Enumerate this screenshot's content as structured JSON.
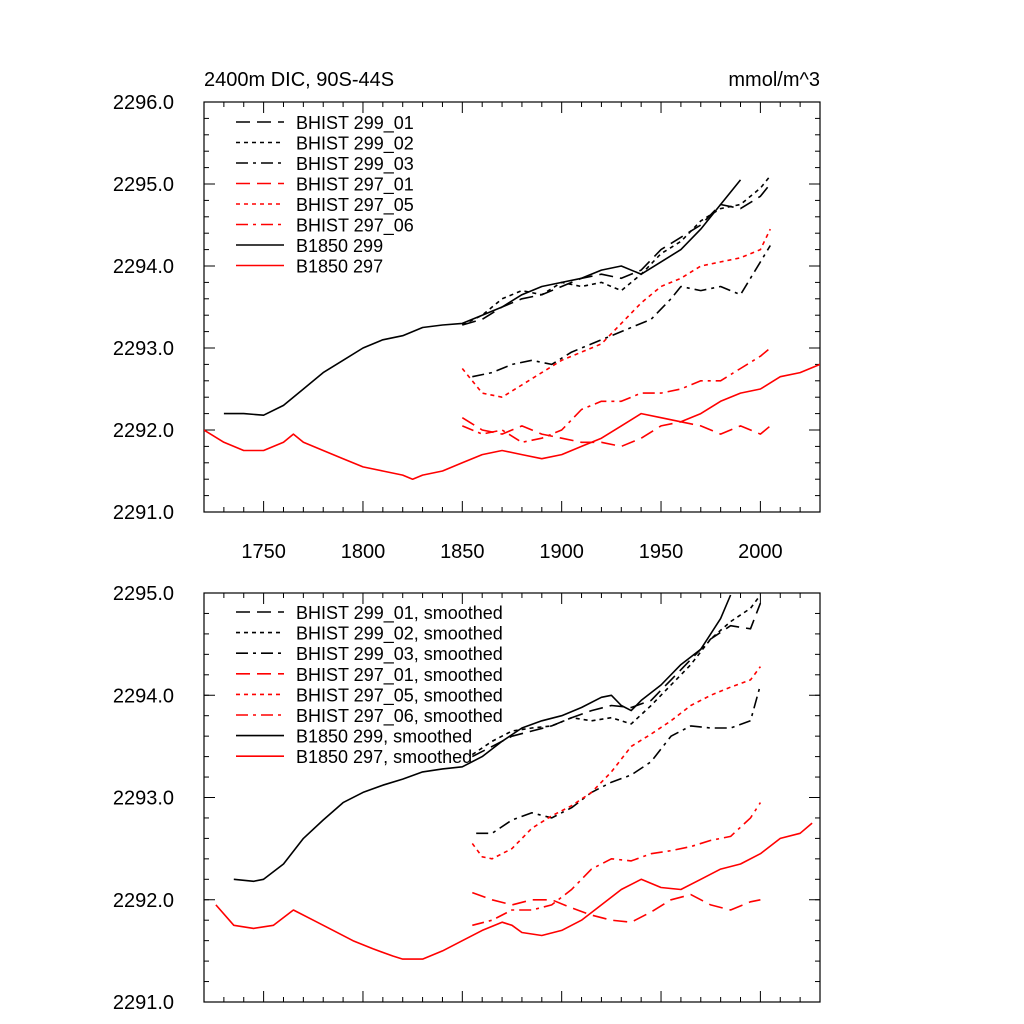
{
  "chart_data": [
    {
      "type": "line",
      "title": "2400m DIC, 90S-44S",
      "units": "mmol/m^3",
      "xlim": [
        1720,
        2030
      ],
      "ylim": [
        2291.0,
        2296.0
      ],
      "x_ticks": [
        1750,
        1800,
        1850,
        1900,
        1950,
        2000
      ],
      "x_tick_labels": [
        "1750",
        "1800",
        "1850",
        "1900",
        "1950",
        "2000"
      ],
      "y_ticks": [
        2291.0,
        2292.0,
        2293.0,
        2294.0,
        2295.0,
        2296.0
      ],
      "y_tick_labels": [
        "2291.0",
        "2292.0",
        "2293.0",
        "2294.0",
        "2295.0",
        "2296.0"
      ],
      "legend_position": "top-left",
      "series": [
        {
          "name": "BHIST 299_01",
          "color": "#000000",
          "dash": "dash",
          "x": [
            1850,
            1860,
            1870,
            1880,
            1890,
            1900,
            1910,
            1920,
            1930,
            1940,
            1950,
            1960,
            1970,
            1980,
            1990,
            2000,
            2005
          ],
          "y": [
            2293.28,
            2293.35,
            2293.5,
            2293.6,
            2293.65,
            2293.75,
            2293.85,
            2293.9,
            2293.85,
            2293.95,
            2294.2,
            2294.35,
            2294.5,
            2294.75,
            2294.7,
            2294.85,
            2295.0
          ]
        },
        {
          "name": "BHIST 299_02",
          "color": "#000000",
          "dash": "dot",
          "x": [
            1850,
            1860,
            1870,
            1880,
            1890,
            1900,
            1910,
            1920,
            1930,
            1940,
            1950,
            1960,
            1970,
            1980,
            1990,
            2000,
            2005
          ],
          "y": [
            2293.28,
            2293.4,
            2293.6,
            2293.7,
            2293.65,
            2293.8,
            2293.75,
            2293.8,
            2293.7,
            2293.9,
            2294.15,
            2294.3,
            2294.55,
            2294.7,
            2294.75,
            2294.95,
            2295.1
          ]
        },
        {
          "name": "BHIST 299_03",
          "color": "#000000",
          "dash": "dashdot",
          "x": [
            1855,
            1865,
            1875,
            1885,
            1895,
            1905,
            1915,
            1925,
            1935,
            1945,
            1955,
            1960,
            1970,
            1980,
            1990,
            2000,
            2005
          ],
          "y": [
            2292.65,
            2292.7,
            2292.8,
            2292.85,
            2292.8,
            2292.95,
            2293.05,
            2293.15,
            2293.25,
            2293.35,
            2293.6,
            2293.75,
            2293.7,
            2293.75,
            2293.65,
            2294.05,
            2294.25
          ]
        },
        {
          "name": "BHIST 297_01",
          "color": "#ff0000",
          "dash": "dash",
          "x": [
            1850,
            1860,
            1870,
            1880,
            1890,
            1900,
            1910,
            1920,
            1930,
            1940,
            1950,
            1960,
            1970,
            1980,
            1990,
            2000,
            2005
          ],
          "y": [
            2292.15,
            2292.0,
            2291.95,
            2292.05,
            2291.95,
            2291.9,
            2291.85,
            2291.85,
            2291.8,
            2291.9,
            2292.05,
            2292.1,
            2292.05,
            2291.95,
            2292.05,
            2291.95,
            2292.05
          ]
        },
        {
          "name": "BHIST 297_05",
          "color": "#ff0000",
          "dash": "dot",
          "x": [
            1850,
            1860,
            1870,
            1880,
            1890,
            1900,
            1910,
            1920,
            1930,
            1940,
            1950,
            1960,
            1970,
            1980,
            1990,
            2000,
            2005
          ],
          "y": [
            2292.75,
            2292.45,
            2292.4,
            2292.55,
            2292.7,
            2292.85,
            2292.95,
            2293.05,
            2293.3,
            2293.55,
            2293.75,
            2293.85,
            2294.0,
            2294.05,
            2294.1,
            2294.2,
            2294.45
          ]
        },
        {
          "name": "BHIST 297_06",
          "color": "#ff0000",
          "dash": "dashdot",
          "x": [
            1850,
            1860,
            1870,
            1880,
            1890,
            1900,
            1910,
            1920,
            1930,
            1940,
            1950,
            1960,
            1970,
            1980,
            1990,
            2000,
            2005
          ],
          "y": [
            2292.05,
            2291.95,
            2292.0,
            2291.85,
            2291.9,
            2292.0,
            2292.25,
            2292.35,
            2292.35,
            2292.45,
            2292.45,
            2292.5,
            2292.6,
            2292.6,
            2292.75,
            2292.9,
            2293.0
          ]
        },
        {
          "name": "B1850 299",
          "color": "#000000",
          "dash": "solid",
          "x": [
            1730,
            1740,
            1750,
            1760,
            1770,
            1780,
            1790,
            1800,
            1810,
            1820,
            1830,
            1840,
            1850,
            1860,
            1870,
            1880,
            1890,
            1900,
            1910,
            1920,
            1930,
            1940,
            1950,
            1960,
            1970,
            1980,
            1990
          ],
          "y": [
            2292.2,
            2292.2,
            2292.18,
            2292.3,
            2292.5,
            2292.7,
            2292.85,
            2293.0,
            2293.1,
            2293.15,
            2293.25,
            2293.28,
            2293.3,
            2293.4,
            2293.5,
            2293.65,
            2293.75,
            2293.8,
            2293.85,
            2293.95,
            2294.0,
            2293.9,
            2294.05,
            2294.2,
            2294.45,
            2294.75,
            2295.05
          ]
        },
        {
          "name": "B1850 297",
          "color": "#ff0000",
          "dash": "solid",
          "x": [
            1720,
            1730,
            1740,
            1750,
            1760,
            1765,
            1770,
            1780,
            1790,
            1800,
            1810,
            1820,
            1825,
            1830,
            1840,
            1850,
            1860,
            1870,
            1880,
            1890,
            1900,
            1910,
            1920,
            1930,
            1940,
            1950,
            1960,
            1970,
            1980,
            1990,
            2000,
            2010,
            2020,
            2030
          ],
          "y": [
            2292.0,
            2291.85,
            2291.75,
            2291.75,
            2291.85,
            2291.95,
            2291.85,
            2291.75,
            2291.65,
            2291.55,
            2291.5,
            2291.45,
            2291.4,
            2291.45,
            2291.5,
            2291.6,
            2291.7,
            2291.75,
            2291.7,
            2291.65,
            2291.7,
            2291.8,
            2291.9,
            2292.05,
            2292.2,
            2292.15,
            2292.1,
            2292.2,
            2292.35,
            2292.45,
            2292.5,
            2292.65,
            2292.7,
            2292.8
          ]
        }
      ]
    },
    {
      "type": "line",
      "xlim": [
        1720,
        2030
      ],
      "ylim": [
        2291.0,
        2295.0
      ],
      "x_ticks": [
        1750,
        1800,
        1850,
        1900,
        1950,
        2000
      ],
      "x_tick_labels": [],
      "y_ticks": [
        2291.0,
        2292.0,
        2293.0,
        2294.0,
        2295.0
      ],
      "y_tick_labels": [
        "2291.0",
        "2292.0",
        "2293.0",
        "2294.0",
        "2295.0"
      ],
      "legend_position": "top-left",
      "series": [
        {
          "name": "BHIST 299_01, smoothed",
          "color": "#000000",
          "dash": "dash",
          "x": [
            1855,
            1865,
            1875,
            1885,
            1895,
            1905,
            1915,
            1925,
            1935,
            1945,
            1955,
            1965,
            1975,
            1985,
            1995,
            2000
          ],
          "y": [
            2293.4,
            2293.5,
            2293.6,
            2293.65,
            2293.7,
            2293.78,
            2293.85,
            2293.9,
            2293.88,
            2293.95,
            2294.15,
            2294.35,
            2294.55,
            2294.68,
            2294.65,
            2294.9
          ]
        },
        {
          "name": "BHIST 299_02, smoothed",
          "color": "#000000",
          "dash": "dot",
          "x": [
            1855,
            1865,
            1875,
            1885,
            1895,
            1905,
            1915,
            1925,
            1935,
            1945,
            1955,
            1965,
            1975,
            1985,
            1995,
            2000
          ],
          "y": [
            2293.42,
            2293.55,
            2293.65,
            2293.68,
            2293.7,
            2293.78,
            2293.75,
            2293.78,
            2293.72,
            2293.9,
            2294.1,
            2294.3,
            2294.55,
            2294.72,
            2294.85,
            2294.98
          ]
        },
        {
          "name": "BHIST 299_03, smoothed",
          "color": "#000000",
          "dash": "dashdot",
          "x": [
            1857,
            1865,
            1875,
            1885,
            1895,
            1905,
            1915,
            1925,
            1935,
            1945,
            1955,
            1965,
            1975,
            1985,
            1995,
            2000
          ],
          "y": [
            2292.65,
            2292.65,
            2292.78,
            2292.85,
            2292.8,
            2292.9,
            2293.05,
            2293.15,
            2293.22,
            2293.35,
            2293.6,
            2293.7,
            2293.68,
            2293.68,
            2293.75,
            2294.1
          ]
        },
        {
          "name": "BHIST 297_01, smoothed",
          "color": "#ff0000",
          "dash": "dash",
          "x": [
            1855,
            1865,
            1875,
            1885,
            1895,
            1905,
            1915,
            1925,
            1935,
            1945,
            1955,
            1965,
            1975,
            1985,
            1995,
            2000
          ],
          "y": [
            2292.07,
            2292.0,
            2291.95,
            2292.0,
            2292.0,
            2291.92,
            2291.85,
            2291.8,
            2291.78,
            2291.88,
            2292.0,
            2292.05,
            2291.95,
            2291.9,
            2291.98,
            2292.0
          ]
        },
        {
          "name": "BHIST 297_05, smoothed",
          "color": "#ff0000",
          "dash": "dot",
          "x": [
            1855,
            1860,
            1865,
            1875,
            1885,
            1895,
            1905,
            1915,
            1925,
            1935,
            1945,
            1955,
            1965,
            1975,
            1985,
            1995,
            2000
          ],
          "y": [
            2292.55,
            2292.42,
            2292.4,
            2292.5,
            2292.7,
            2292.82,
            2292.92,
            2293.05,
            2293.25,
            2293.5,
            2293.62,
            2293.75,
            2293.9,
            2294.0,
            2294.08,
            2294.15,
            2294.28
          ]
        },
        {
          "name": "BHIST 297_06, smoothed",
          "color": "#ff0000",
          "dash": "dashdot",
          "x": [
            1855,
            1865,
            1875,
            1885,
            1895,
            1905,
            1915,
            1925,
            1935,
            1945,
            1955,
            1965,
            1975,
            1985,
            1995,
            2000
          ],
          "y": [
            2291.75,
            2291.8,
            2291.9,
            2291.9,
            2291.95,
            2292.1,
            2292.3,
            2292.4,
            2292.38,
            2292.45,
            2292.48,
            2292.52,
            2292.58,
            2292.62,
            2292.8,
            2292.95
          ]
        },
        {
          "name": "B1850 299, smoothed",
          "color": "#000000",
          "dash": "solid",
          "x": [
            1735,
            1745,
            1750,
            1760,
            1770,
            1780,
            1790,
            1800,
            1810,
            1820,
            1830,
            1840,
            1850,
            1860,
            1870,
            1880,
            1890,
            1900,
            1910,
            1920,
            1925,
            1930,
            1935,
            1940,
            1950,
            1960,
            1970,
            1980,
            1985
          ],
          "y": [
            2292.2,
            2292.18,
            2292.2,
            2292.35,
            2292.6,
            2292.78,
            2292.95,
            2293.05,
            2293.12,
            2293.18,
            2293.25,
            2293.28,
            2293.3,
            2293.4,
            2293.55,
            2293.68,
            2293.75,
            2293.8,
            2293.88,
            2293.98,
            2294.0,
            2293.9,
            2293.85,
            2293.95,
            2294.1,
            2294.3,
            2294.45,
            2294.75,
            2294.98
          ]
        },
        {
          "name": "B1850 297, smoothed",
          "color": "#ff0000",
          "dash": "solid",
          "x": [
            1726,
            1735,
            1745,
            1755,
            1765,
            1775,
            1785,
            1795,
            1805,
            1815,
            1820,
            1830,
            1840,
            1850,
            1860,
            1870,
            1875,
            1880,
            1890,
            1900,
            1910,
            1920,
            1930,
            1940,
            1950,
            1960,
            1970,
            1980,
            1990,
            2000,
            2010,
            2020,
            2026
          ],
          "y": [
            2291.95,
            2291.75,
            2291.72,
            2291.75,
            2291.9,
            2291.8,
            2291.7,
            2291.6,
            2291.52,
            2291.45,
            2291.42,
            2291.42,
            2291.5,
            2291.6,
            2291.7,
            2291.78,
            2291.75,
            2291.68,
            2291.65,
            2291.7,
            2291.8,
            2291.95,
            2292.1,
            2292.2,
            2292.12,
            2292.1,
            2292.2,
            2292.3,
            2292.35,
            2292.45,
            2292.6,
            2292.65,
            2292.75
          ]
        }
      ]
    }
  ]
}
